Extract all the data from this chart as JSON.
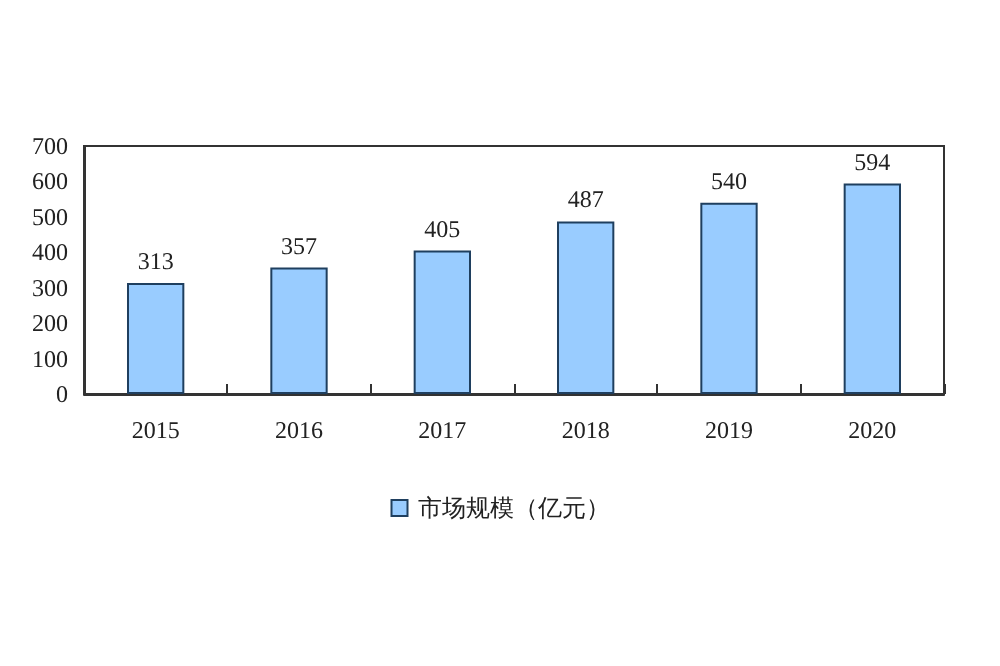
{
  "chart_data": {
    "type": "bar",
    "categories": [
      "2015",
      "2016",
      "2017",
      "2018",
      "2019",
      "2020"
    ],
    "series": [
      {
        "name": "市场规模（亿元）",
        "color": "#99ccff",
        "values": [
          313,
          357,
          405,
          487,
          540,
          594
        ]
      }
    ],
    "ylim": [
      0,
      700
    ],
    "yticks": [
      0,
      100,
      200,
      300,
      400,
      500,
      600,
      700
    ],
    "grid": false,
    "legend": "bottom",
    "data_labels": true
  }
}
